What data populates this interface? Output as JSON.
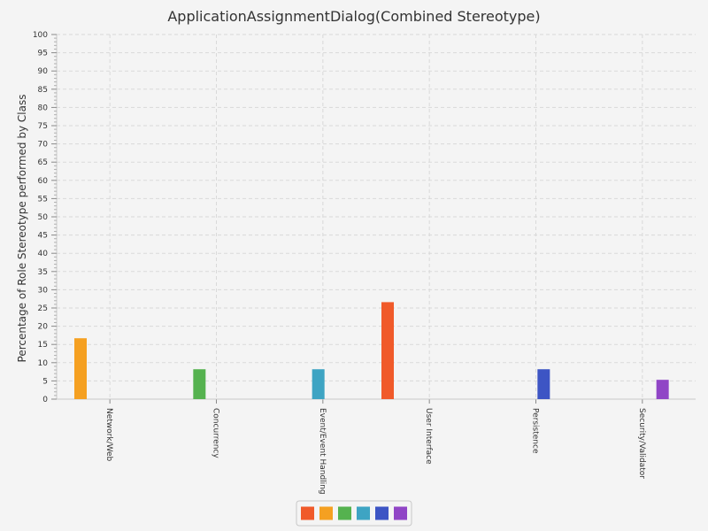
{
  "chart_data": {
    "type": "bar",
    "title": "ApplicationAssignmentDialog(Combined Stereotype)",
    "xlabel": "",
    "ylabel": "Percentage of Role Stereotype performed by Class",
    "ylim": [
      0,
      100
    ],
    "ytick_step": 5,
    "grid": true,
    "legend_position": "bottom",
    "categories": [
      "Network/Web",
      "Concurrency",
      "Event/Event Handling",
      "User Interface",
      "Persistence",
      "Security/Validator"
    ],
    "series": [
      {
        "color": "#f05a2a",
        "values": [
          0,
          0,
          0,
          26.6,
          0,
          0
        ]
      },
      {
        "color": "#f5a021",
        "values": [
          16.7,
          0,
          0,
          0,
          0,
          0
        ]
      },
      {
        "color": "#55b24f",
        "values": [
          0,
          8.2,
          0,
          0,
          0,
          0
        ]
      },
      {
        "color": "#3ea4c3",
        "values": [
          0,
          0,
          8.2,
          0,
          0,
          0
        ]
      },
      {
        "color": "#3d55c4",
        "values": [
          0,
          0,
          0,
          0,
          8.2,
          0
        ]
      },
      {
        "color": "#9045c6",
        "values": [
          0,
          0,
          0,
          0,
          0,
          5.3
        ]
      }
    ]
  }
}
